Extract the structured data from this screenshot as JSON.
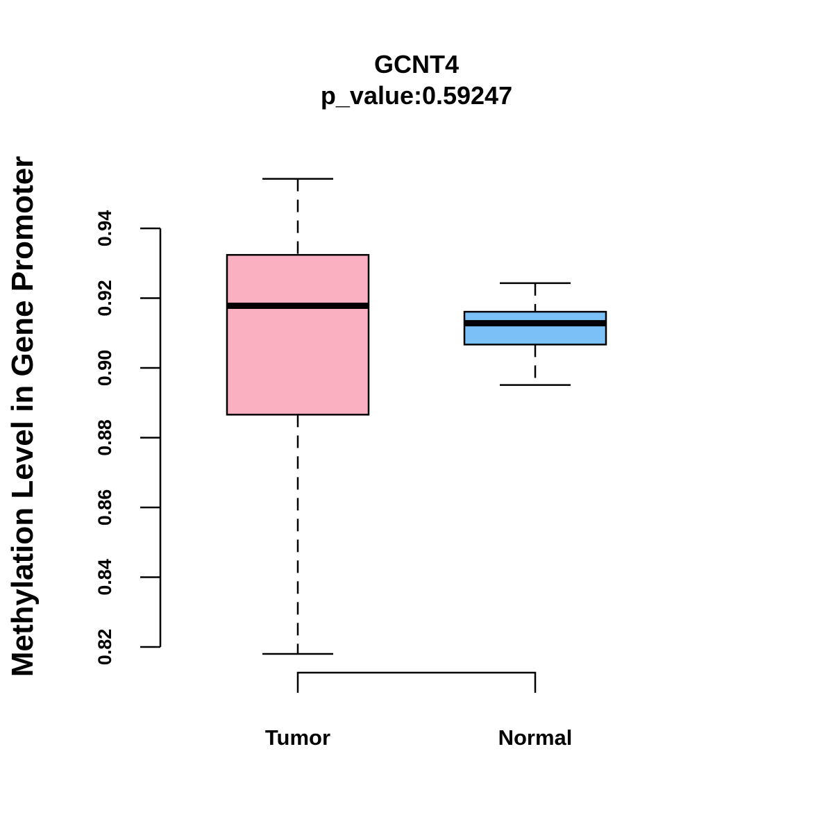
{
  "chart_data": {
    "type": "box",
    "title": "GCNT4",
    "subtitle": "p_value:0.59247",
    "ylabel": "Methylation Level in Gene Promoter",
    "xlabel": "",
    "ylim": [
      0.82,
      0.94
    ],
    "yticks": [
      "0.82",
      "0.84",
      "0.86",
      "0.88",
      "0.90",
      "0.92",
      "0.94"
    ],
    "categories": [
      "Tumor",
      "Normal"
    ],
    "series": [
      {
        "name": "Tumor",
        "color": "#FBB0C2",
        "whisker_low": 0.818,
        "q1": 0.8866,
        "median": 0.9178,
        "q3": 0.9324,
        "whisker_high": 0.9542
      },
      {
        "name": "Normal",
        "color": "#7BC1F7",
        "whisker_low": 0.8951,
        "q1": 0.9067,
        "median": 0.9128,
        "q3": 0.9161,
        "whisker_high": 0.9243
      }
    ],
    "bracket": true,
    "grid": false,
    "legend": "none"
  }
}
